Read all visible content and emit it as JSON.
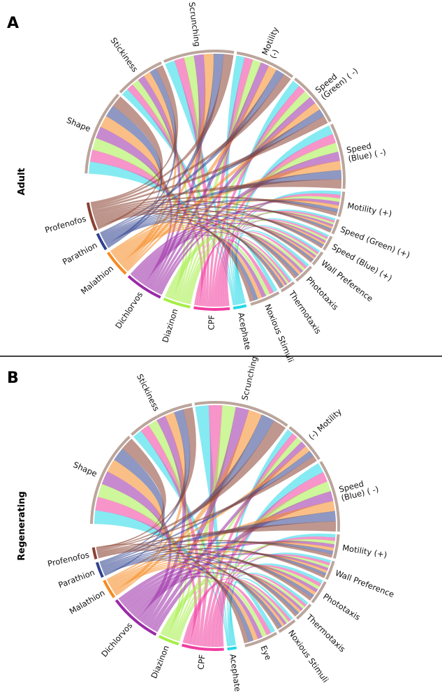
{
  "panels": [
    {
      "letter": "A",
      "side_label": "Adult",
      "sources": [
        {
          "name": "Acephate",
          "color": "#22d8e8",
          "weight": 1.1
        },
        {
          "name": "CPF",
          "color": "#f03c9f",
          "weight": 3.0
        },
        {
          "name": "Diazinon",
          "color": "#a6ee48",
          "weight": 2.3
        },
        {
          "name": "Dichlorvos",
          "color": "#9a2aa6",
          "weight": 3.2
        },
        {
          "name": "Malathion",
          "color": "#f58a22",
          "weight": 2.3
        },
        {
          "name": "Parathion",
          "color": "#31438f",
          "weight": 1.5
        },
        {
          "name": "Profenofos",
          "color": "#8a4232",
          "weight": 2.4
        }
      ],
      "targets": [
        {
          "name": "Shape",
          "lines": [
            "Shape"
          ],
          "weight": 1.7
        },
        {
          "name": "Stickiness",
          "lines": [
            "Stickiness"
          ],
          "weight": 1.0
        },
        {
          "name": "Scrunching",
          "lines": [
            "Scrunching"
          ],
          "weight": 1.4
        },
        {
          "name": "Motility (-)",
          "lines": [
            "Motility",
            "(-)"
          ],
          "weight": 1.2
        },
        {
          "name": "Speed (Green) (-)",
          "lines": [
            "Speed",
            "(Green) ( -)"
          ],
          "weight": 1.1
        },
        {
          "name": "Speed (Blue) (-)",
          "lines": [
            "Speed",
            "(Blue) ( -)"
          ],
          "weight": 1.3
        },
        {
          "name": "Motility (+)",
          "lines": [
            "Motility (+)"
          ],
          "weight": 0.5
        },
        {
          "name": "Speed (Green) (+)",
          "lines": [
            "Speed (Green) (+)"
          ],
          "weight": 0.3
        },
        {
          "name": "Speed (Blue) (+)",
          "lines": [
            "Speed (Blue) (+)"
          ],
          "weight": 0.3
        },
        {
          "name": "Wall Preference",
          "lines": [
            "Wall Preference"
          ],
          "weight": 0.3
        },
        {
          "name": "Phototaxis",
          "lines": [
            "Phototaxis"
          ],
          "weight": 0.4
        },
        {
          "name": "Thermotaxis",
          "lines": [
            "Thermotaxis"
          ],
          "weight": 0.3
        },
        {
          "name": "Noxious Stimuli",
          "lines": [
            "Noxious Stimuli"
          ],
          "weight": 0.6
        }
      ]
    },
    {
      "letter": "B",
      "side_label": "Regenerating",
      "sources": [
        {
          "name": "Acephate",
          "color": "#22d8e8",
          "weight": 0.7
        },
        {
          "name": "CPF",
          "color": "#f03c9f",
          "weight": 3.2
        },
        {
          "name": "Diazinon",
          "color": "#a6ee48",
          "weight": 1.6
        },
        {
          "name": "Dichlorvos",
          "color": "#9a2aa6",
          "weight": 4.0
        },
        {
          "name": "Malathion",
          "color": "#f58a22",
          "weight": 1.5
        },
        {
          "name": "Parathion",
          "color": "#31438f",
          "weight": 1.2
        },
        {
          "name": "Profenofos",
          "color": "#8a4232",
          "weight": 0.9
        }
      ],
      "targets": [
        {
          "name": "Shape",
          "lines": [
            "Shape"
          ],
          "weight": 2.0
        },
        {
          "name": "Stickiness",
          "lines": [
            "Stickiness"
          ],
          "weight": 1.4
        },
        {
          "name": "Scrunching",
          "lines": [
            "Scrunching"
          ],
          "weight": 2.0
        },
        {
          "name": "Motility (-)",
          "lines": [
            "(-) Motility"
          ],
          "weight": 0.9
        },
        {
          "name": "Speed (Blue) (-)",
          "lines": [
            "Speed",
            "(Blue) ( -)"
          ],
          "weight": 1.5
        },
        {
          "name": "Motility (+)",
          "lines": [
            "Motility (+)"
          ],
          "weight": 0.5
        },
        {
          "name": "Wall Preference",
          "lines": [
            "Wall Preference"
          ],
          "weight": 0.4
        },
        {
          "name": "Phototaxis",
          "lines": [
            "Phototaxis"
          ],
          "weight": 0.5
        },
        {
          "name": "Thermotaxis",
          "lines": [
            "Thermotaxis"
          ],
          "weight": 0.4
        },
        {
          "name": "Noxious Stimuli",
          "lines": [
            "Noxious Stimuli"
          ],
          "weight": 0.4
        },
        {
          "name": "Eye",
          "lines": [
            "Eye"
          ],
          "weight": 0.7
        }
      ]
    }
  ],
  "colors": {
    "target_arc": "#bba59b",
    "divider": "#000000"
  }
}
